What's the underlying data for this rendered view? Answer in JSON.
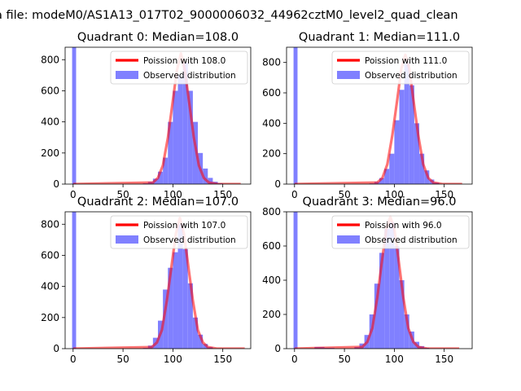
{
  "figure": {
    "suptitle": "a file: modeM0/AS1A13_017T02_9000006032_44962cztM0_level2_quad_clean"
  },
  "chart_data": [
    {
      "type": "bar",
      "title": "Quadrant 0: Median=108.0",
      "xlim": [
        -8,
        178
      ],
      "ylim": [
        0,
        880
      ],
      "xticks": [
        0,
        50,
        100,
        150
      ],
      "yticks": [
        0,
        200,
        400,
        600,
        800
      ],
      "legend_placement": "top-right",
      "series": [
        {
          "name": "Poission with 108.0",
          "kind": "line",
          "color": "#ff0000"
        },
        {
          "name": "Observed distribution",
          "kind": "hist",
          "color": "#8080ff"
        }
      ],
      "hist_bins": [
        {
          "x0": -1,
          "x1": 3,
          "value": 880
        },
        {
          "x0": 70,
          "x1": 75,
          "value": 5
        },
        {
          "x0": 75,
          "x1": 80,
          "value": 15
        },
        {
          "x0": 80,
          "x1": 85,
          "value": 35
        },
        {
          "x0": 85,
          "x1": 90,
          "value": 80
        },
        {
          "x0": 90,
          "x1": 95,
          "value": 170
        },
        {
          "x0": 95,
          "x1": 100,
          "value": 400
        },
        {
          "x0": 100,
          "x1": 105,
          "value": 600
        },
        {
          "x0": 105,
          "x1": 110,
          "value": 700
        },
        {
          "x0": 110,
          "x1": 115,
          "value": 780
        },
        {
          "x0": 115,
          "x1": 120,
          "value": 600
        },
        {
          "x0": 120,
          "x1": 125,
          "value": 400
        },
        {
          "x0": 125,
          "x1": 130,
          "value": 200
        },
        {
          "x0": 130,
          "x1": 135,
          "value": 100
        },
        {
          "x0": 135,
          "x1": 140,
          "value": 40
        },
        {
          "x0": 140,
          "x1": 145,
          "value": 15
        },
        {
          "x0": 145,
          "x1": 150,
          "value": 5
        }
      ],
      "line_points": [
        [
          0,
          0
        ],
        [
          80,
          10
        ],
        [
          85,
          40
        ],
        [
          90,
          120
        ],
        [
          95,
          300
        ],
        [
          100,
          540
        ],
        [
          104,
          730
        ],
        [
          108,
          840
        ],
        [
          112,
          730
        ],
        [
          116,
          540
        ],
        [
          121,
          300
        ],
        [
          126,
          120
        ],
        [
          131,
          40
        ],
        [
          136,
          10
        ],
        [
          145,
          0
        ],
        [
          168,
          0
        ]
      ]
    },
    {
      "type": "bar",
      "title": "Quadrant 1: Median=111.0",
      "xlim": [
        -8,
        178
      ],
      "ylim": [
        0,
        900
      ],
      "xticks": [
        0,
        50,
        100,
        150
      ],
      "yticks": [
        0,
        200,
        400,
        600,
        800
      ],
      "legend_placement": "top-right",
      "series": [
        {
          "name": "Poission with 111.0",
          "kind": "line",
          "color": "#ff0000"
        },
        {
          "name": "Observed distribution",
          "kind": "hist",
          "color": "#8080ff"
        }
      ],
      "hist_bins": [
        {
          "x0": -1,
          "x1": 3,
          "value": 900
        },
        {
          "x0": 75,
          "x1": 80,
          "value": 5
        },
        {
          "x0": 80,
          "x1": 85,
          "value": 15
        },
        {
          "x0": 85,
          "x1": 90,
          "value": 40
        },
        {
          "x0": 90,
          "x1": 95,
          "value": 100
        },
        {
          "x0": 95,
          "x1": 100,
          "value": 200
        },
        {
          "x0": 100,
          "x1": 105,
          "value": 420
        },
        {
          "x0": 105,
          "x1": 110,
          "value": 620
        },
        {
          "x0": 110,
          "x1": 115,
          "value": 800
        },
        {
          "x0": 115,
          "x1": 120,
          "value": 650
        },
        {
          "x0": 120,
          "x1": 125,
          "value": 400
        },
        {
          "x0": 125,
          "x1": 130,
          "value": 200
        },
        {
          "x0": 130,
          "x1": 135,
          "value": 90
        },
        {
          "x0": 135,
          "x1": 140,
          "value": 30
        },
        {
          "x0": 140,
          "x1": 145,
          "value": 10
        }
      ],
      "line_points": [
        [
          0,
          0
        ],
        [
          83,
          10
        ],
        [
          88,
          40
        ],
        [
          93,
          130
        ],
        [
          98,
          320
        ],
        [
          103,
          560
        ],
        [
          107,
          760
        ],
        [
          111,
          850
        ],
        [
          115,
          760
        ],
        [
          119,
          560
        ],
        [
          124,
          320
        ],
        [
          129,
          130
        ],
        [
          134,
          40
        ],
        [
          139,
          10
        ],
        [
          148,
          0
        ],
        [
          168,
          0
        ]
      ]
    },
    {
      "type": "bar",
      "title": "Quadrant 2: Median=107.0",
      "xlim": [
        -8,
        178
      ],
      "ylim": [
        0,
        880
      ],
      "xticks": [
        0,
        50,
        100,
        150
      ],
      "yticks": [
        0,
        200,
        400,
        600,
        800
      ],
      "legend_placement": "top-right",
      "series": [
        {
          "name": "Poission with 107.0",
          "kind": "line",
          "color": "#ff0000"
        },
        {
          "name": "Observed distribution",
          "kind": "hist",
          "color": "#8080ff"
        }
      ],
      "hist_bins": [
        {
          "x0": -1,
          "x1": 3,
          "value": 880
        },
        {
          "x0": 70,
          "x1": 75,
          "value": 5
        },
        {
          "x0": 75,
          "x1": 80,
          "value": 20
        },
        {
          "x0": 80,
          "x1": 85,
          "value": 70
        },
        {
          "x0": 85,
          "x1": 90,
          "value": 180
        },
        {
          "x0": 90,
          "x1": 95,
          "value": 380
        },
        {
          "x0": 95,
          "x1": 100,
          "value": 520
        },
        {
          "x0": 100,
          "x1": 105,
          "value": 620
        },
        {
          "x0": 105,
          "x1": 110,
          "value": 800
        },
        {
          "x0": 110,
          "x1": 115,
          "value": 640
        },
        {
          "x0": 115,
          "x1": 120,
          "value": 420
        },
        {
          "x0": 120,
          "x1": 125,
          "value": 200
        },
        {
          "x0": 125,
          "x1": 130,
          "value": 90
        },
        {
          "x0": 130,
          "x1": 135,
          "value": 30
        },
        {
          "x0": 135,
          "x1": 140,
          "value": 10
        }
      ],
      "line_points": [
        [
          0,
          0
        ],
        [
          79,
          10
        ],
        [
          84,
          40
        ],
        [
          89,
          120
        ],
        [
          94,
          310
        ],
        [
          99,
          550
        ],
        [
          103,
          740
        ],
        [
          107,
          840
        ],
        [
          111,
          740
        ],
        [
          115,
          550
        ],
        [
          120,
          310
        ],
        [
          125,
          120
        ],
        [
          130,
          40
        ],
        [
          135,
          10
        ],
        [
          144,
          0
        ],
        [
          172,
          0
        ]
      ]
    },
    {
      "type": "bar",
      "title": "Quadrant 3: Median=96.0",
      "xlim": [
        -8,
        178
      ],
      "ylim": [
        0,
        800
      ],
      "xticks": [
        0,
        50,
        100,
        150
      ],
      "yticks": [
        0,
        200,
        400,
        600,
        800
      ],
      "legend_placement": "top-right",
      "series": [
        {
          "name": "Poission with 96.0",
          "kind": "line",
          "color": "#ff0000"
        },
        {
          "name": "Observed distribution",
          "kind": "hist",
          "color": "#8080ff"
        }
      ],
      "hist_bins": [
        {
          "x0": -1,
          "x1": 3,
          "value": 800
        },
        {
          "x0": 20,
          "x1": 30,
          "value": 10
        },
        {
          "x0": 30,
          "x1": 40,
          "value": 5
        },
        {
          "x0": 60,
          "x1": 65,
          "value": 10
        },
        {
          "x0": 65,
          "x1": 70,
          "value": 30
        },
        {
          "x0": 70,
          "x1": 75,
          "value": 80
        },
        {
          "x0": 75,
          "x1": 80,
          "value": 200
        },
        {
          "x0": 80,
          "x1": 85,
          "value": 380
        },
        {
          "x0": 85,
          "x1": 90,
          "value": 560
        },
        {
          "x0": 90,
          "x1": 95,
          "value": 700
        },
        {
          "x0": 95,
          "x1": 100,
          "value": 740
        },
        {
          "x0": 100,
          "x1": 105,
          "value": 600
        },
        {
          "x0": 105,
          "x1": 110,
          "value": 400
        },
        {
          "x0": 110,
          "x1": 115,
          "value": 200
        },
        {
          "x0": 115,
          "x1": 120,
          "value": 100
        },
        {
          "x0": 120,
          "x1": 125,
          "value": 40
        },
        {
          "x0": 125,
          "x1": 130,
          "value": 15
        },
        {
          "x0": 130,
          "x1": 135,
          "value": 5
        }
      ],
      "line_points": [
        [
          0,
          0
        ],
        [
          68,
          10
        ],
        [
          73,
          40
        ],
        [
          78,
          120
        ],
        [
          83,
          300
        ],
        [
          88,
          530
        ],
        [
          92,
          700
        ],
        [
          96,
          770
        ],
        [
          100,
          700
        ],
        [
          104,
          530
        ],
        [
          109,
          300
        ],
        [
          114,
          120
        ],
        [
          119,
          40
        ],
        [
          124,
          10
        ],
        [
          133,
          0
        ],
        [
          165,
          0
        ]
      ]
    }
  ]
}
